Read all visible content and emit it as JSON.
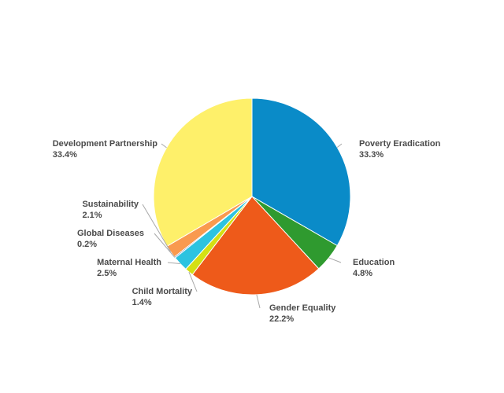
{
  "chart_data": {
    "type": "pie",
    "title": "",
    "slices": [
      {
        "name": "Poverty Eradication",
        "value": 33.3,
        "label": "33.3%",
        "color": "#0a8bc8"
      },
      {
        "name": "Education",
        "value": 4.8,
        "label": "4.8%",
        "color": "#2f9a2f"
      },
      {
        "name": "Gender Equality",
        "value": 22.2,
        "label": "22.2%",
        "color": "#ee5a1a"
      },
      {
        "name": "Child Mortality",
        "value": 1.4,
        "label": "1.4%",
        "color": "#d4e013"
      },
      {
        "name": "Maternal Health",
        "value": 2.5,
        "label": "2.5%",
        "color": "#2cc3e0"
      },
      {
        "name": "Global Diseases",
        "value": 0.2,
        "label": "0.2%",
        "color": "#2b5aa6"
      },
      {
        "name": "Sustainability",
        "value": 2.1,
        "label": "2.1%",
        "color": "#f99a4f"
      },
      {
        "name": "Development Partnership",
        "value": 33.4,
        "label": "33.4%",
        "color": "#fef06a"
      }
    ]
  }
}
